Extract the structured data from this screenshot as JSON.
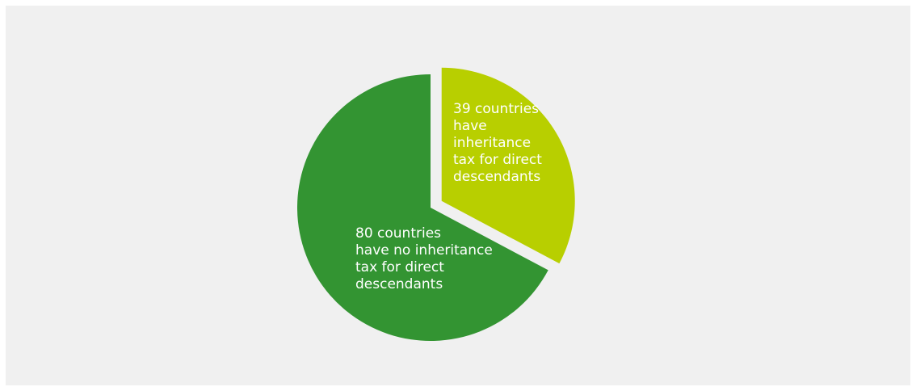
{
  "chart_data": {
    "type": "pie",
    "title": "",
    "slices": [
      {
        "label": "80 countries\nhave no inheritance\ntax for direct\ndescendants",
        "value": 80,
        "color": "#339432",
        "exploded": false
      },
      {
        "label": "39 countries\nhave\ninheritance\ntax for direct\ndescendants",
        "value": 39,
        "color": "#b8cf00",
        "exploded": true
      }
    ],
    "start_angle_deg": 0,
    "direction": "clockwise",
    "legend": "none",
    "background_color": "#f0f0f0"
  }
}
